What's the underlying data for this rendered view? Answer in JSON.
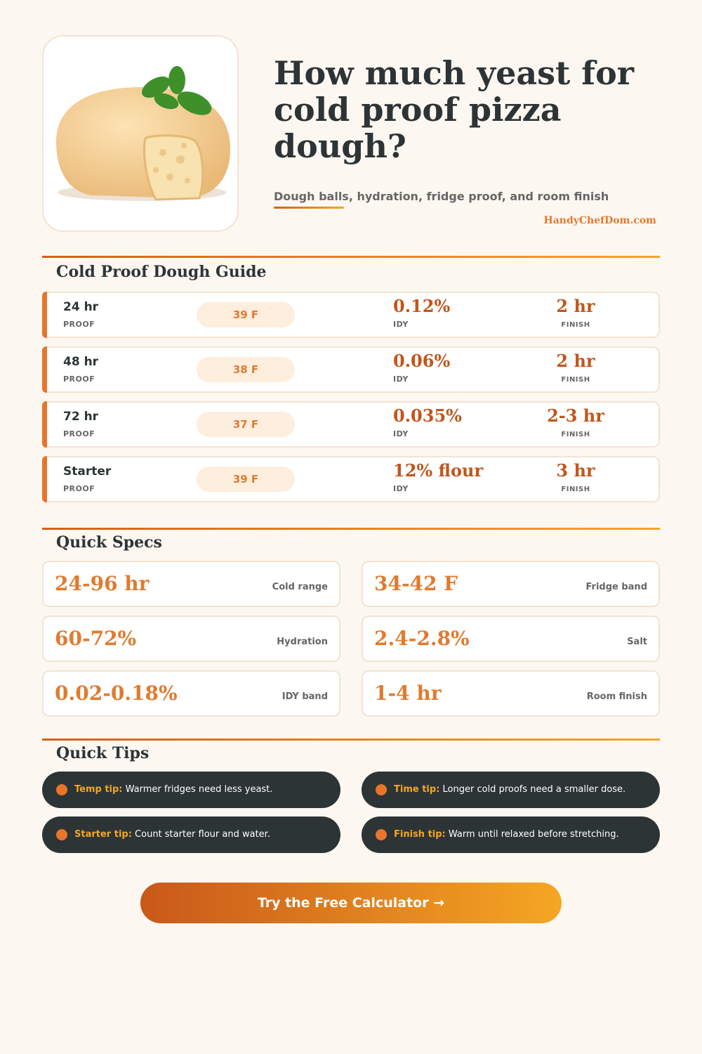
{
  "header": {
    "title": "How much yeast for cold proof pizza dough?",
    "subtitle": "Dough balls, hydration, fridge proof, and room finish",
    "site": "HandyChefDom.com"
  },
  "guide": {
    "heading": "Cold Proof Dough Guide",
    "proof_label": "PROOF",
    "idy_label": "IDY",
    "finish_label": "FINISH",
    "rows": [
      {
        "proof": "24 hr",
        "temp": "39 F",
        "idy": "0.12%",
        "finish": "2 hr"
      },
      {
        "proof": "48 hr",
        "temp": "38 F",
        "idy": "0.06%",
        "finish": "2 hr"
      },
      {
        "proof": "72 hr",
        "temp": "37 F",
        "idy": "0.035%",
        "finish": "2-3 hr"
      },
      {
        "proof": "Starter",
        "temp": "39 F",
        "idy": "12% flour",
        "finish": "3 hr"
      }
    ]
  },
  "specs": {
    "heading": "Quick Specs",
    "items": [
      {
        "value": "24-96 hr",
        "label": "Cold range"
      },
      {
        "value": "34-42 F",
        "label": "Fridge band"
      },
      {
        "value": "60-72%",
        "label": "Hydration"
      },
      {
        "value": "2.4-2.8%",
        "label": "Salt"
      },
      {
        "value": "0.02-0.18%",
        "label": "IDY band"
      },
      {
        "value": "1-4 hr",
        "label": "Room finish"
      }
    ]
  },
  "tips": {
    "heading": "Quick Tips",
    "items": [
      {
        "label": "Temp tip:",
        "text": "Warmer fridges need less yeast."
      },
      {
        "label": "Time tip:",
        "text": "Longer cold proofs need a smaller dose."
      },
      {
        "label": "Starter tip:",
        "text": "Count starter flour and water."
      },
      {
        "label": "Finish tip:",
        "text": "Warm until relaxed before stretching."
      }
    ]
  },
  "cta": {
    "label": "Try the Free Calculator →"
  }
}
